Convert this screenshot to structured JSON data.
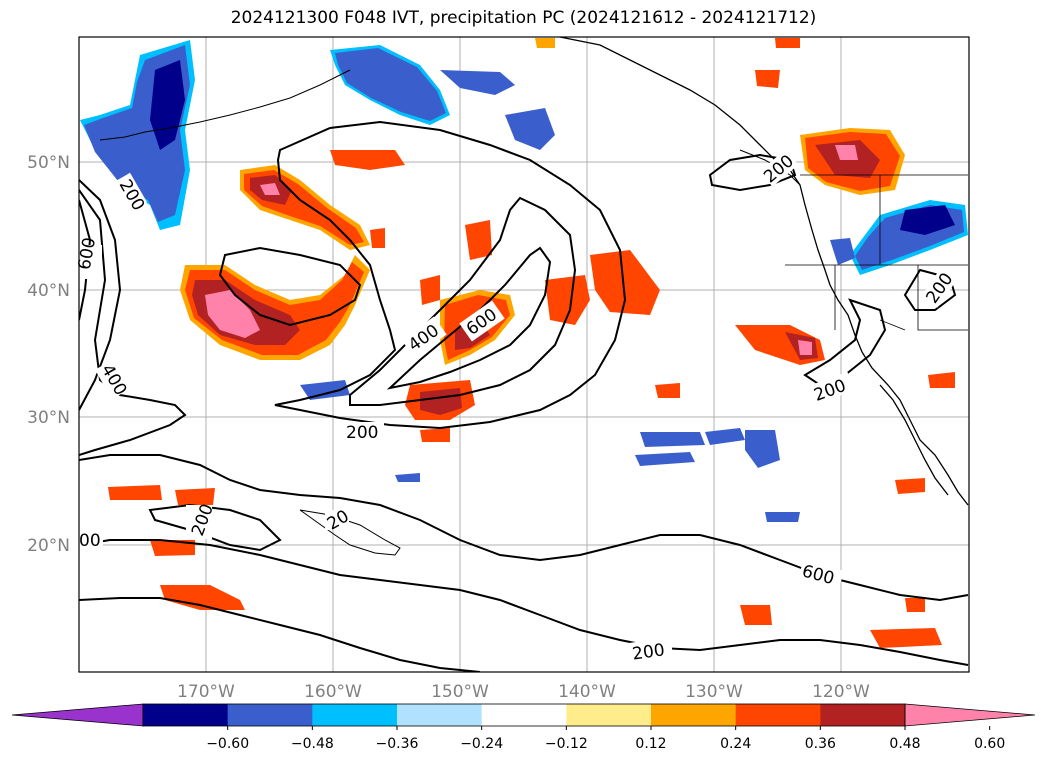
{
  "title": "2024121300 F048 IVT, precipitation PC (2024121612 - 2024121712)",
  "map": {
    "lat_labels": [
      "50°N",
      "40°N",
      "30°N",
      "20°N"
    ],
    "lon_labels": [
      "170°W",
      "160°W",
      "150°W",
      "140°W",
      "130°W",
      "120°W"
    ],
    "contour_labels": [
      "200",
      "600",
      "400",
      "400",
      "600",
      "200",
      "200",
      "200",
      "200",
      "200",
      "600",
      "20",
      "00",
      "200"
    ],
    "contour_color": "#000000",
    "grid_color": "#b0b0b0",
    "label_color": "#808080"
  },
  "colorbar": {
    "ticks": [
      "−0.60",
      "−0.48",
      "−0.36",
      "−0.24",
      "−0.12",
      "0.12",
      "0.24",
      "0.36",
      "0.48",
      "0.60"
    ],
    "colors": [
      "#9a32cd",
      "#00008b",
      "#3a5fcd",
      "#00bfff",
      "#b0e2ff",
      "#ffffff",
      "#ffec8b",
      "#ffa500",
      "#ff4500",
      "#b22222",
      "#ff82ab"
    ],
    "extend": "both"
  }
}
